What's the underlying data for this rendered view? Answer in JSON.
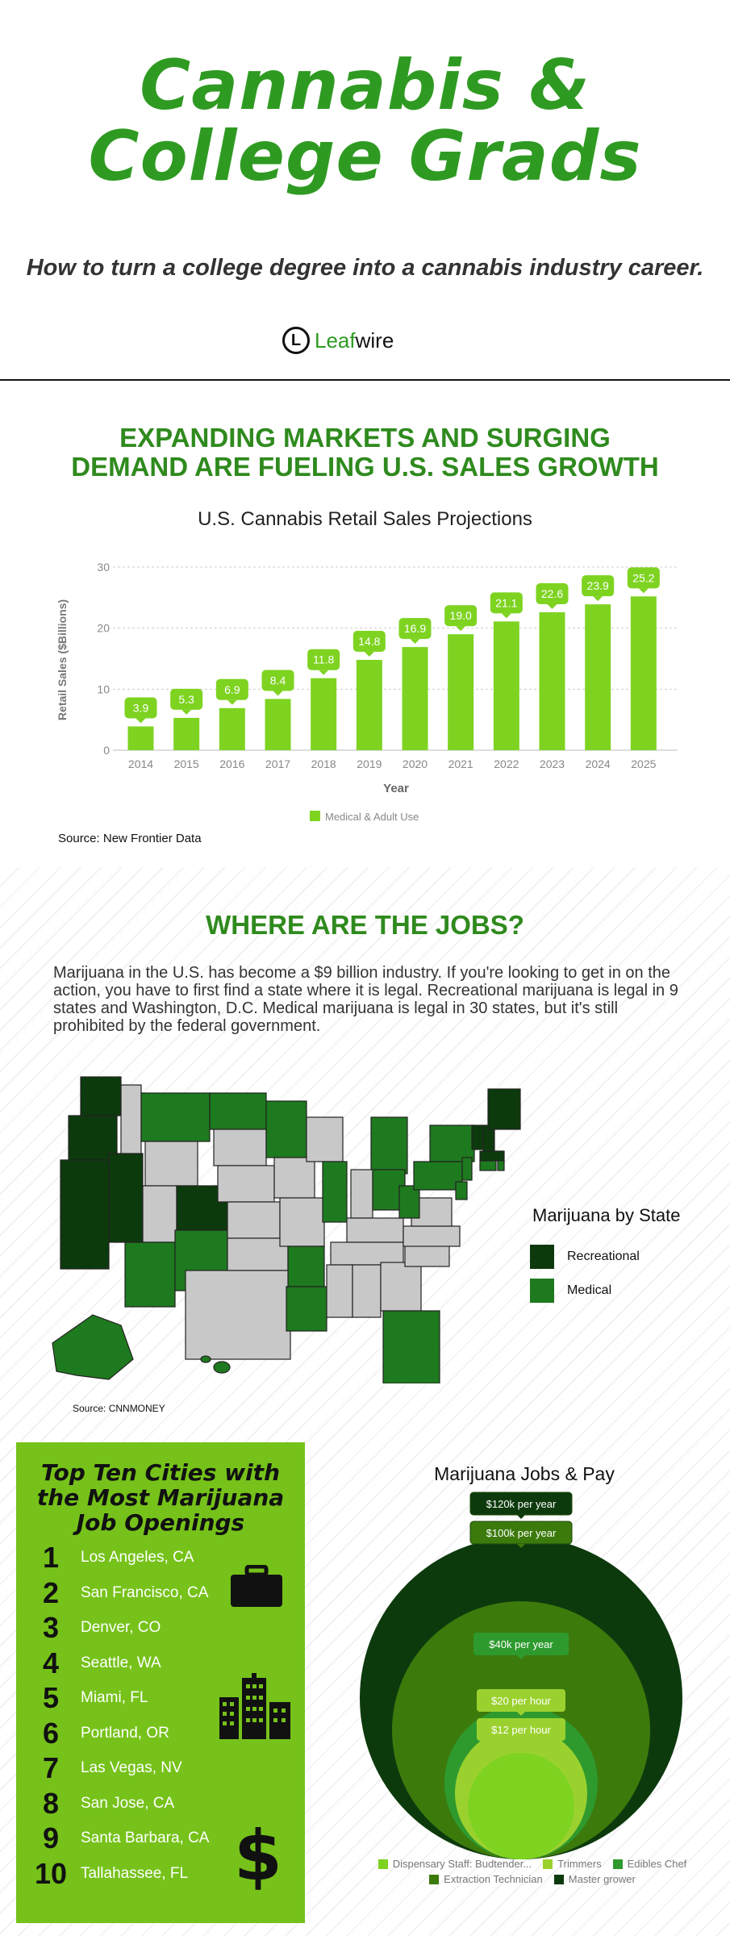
{
  "header": {
    "title_line1": "Cannabis &",
    "title_line2": "College Grads",
    "subtitle": "How to turn a college degree into a cannabis industry career.",
    "logo_mark": "L",
    "logo_leaf": "Leaf",
    "logo_wire": "wire"
  },
  "sales_section": {
    "heading_line1": "EXPANDING MARKETS AND SURGING",
    "heading_line2": "DEMAND ARE FUELING U.S. SALES GROWTH",
    "source": "Source: New Frontier Data"
  },
  "chart_data": [
    {
      "type": "bar",
      "title": "U.S. Cannabis Retail Sales Projections",
      "xlabel": "Year",
      "ylabel": "Retail Sales ($Billions)",
      "ylim": [
        0,
        30
      ],
      "yticks": [
        0,
        10,
        20,
        30
      ],
      "categories": [
        "2014",
        "2015",
        "2016",
        "2017",
        "2018",
        "2019",
        "2020",
        "2021",
        "2022",
        "2023",
        "2024",
        "2025"
      ],
      "series": [
        {
          "name": "Medical & Adult Use",
          "values": [
            3.9,
            5.3,
            6.9,
            8.4,
            11.8,
            14.8,
            16.9,
            19.0,
            21.1,
            22.6,
            23.9,
            25.2
          ],
          "color": "#7ed321"
        }
      ],
      "value_labels": [
        "3.9",
        "5.3",
        "6.9",
        "8.4",
        "11.8",
        "14.8",
        "16.9",
        "19.0",
        "21.1",
        "22.6",
        "23.9",
        "25.2"
      ],
      "grid": true,
      "legend": "bottom"
    },
    {
      "type": "pie",
      "title": "Marijuana Jobs & Pay",
      "style": "nested-circles",
      "categories": [
        "Dispensary Staff: Budtender...",
        "Trimmers",
        "Edibles Chef",
        "Extraction Technician",
        "Master grower"
      ],
      "values": [
        12,
        20,
        40000,
        100000,
        120000
      ],
      "value_labels": [
        "$12 per hour",
        "$20 per hour",
        "$40k per year",
        "$100k per year",
        "$120k per year"
      ],
      "colors": [
        "#7ed321",
        "#9bd12f",
        "#2e9a2e",
        "#3c7a0c",
        "#0d3a0d"
      ],
      "legend": "bottom"
    }
  ],
  "jobs_section": {
    "heading": "WHERE ARE THE JOBS?",
    "paragraph": "Marijuana in the U.S. has become a $9 billion industry. If you're looking to get in on the action, you have to first find a state where it is legal. Recreational marijuana is legal in 9 states and Washington, D.C.  Medical marijuana is legal in 30 states, but it's still prohibited by the federal government.",
    "map_legend_title": "Marijuana by State",
    "legend_recreational": "Recreational",
    "legend_medical": "Medical",
    "color_recreational": "#0d3a0d",
    "color_medical": "#1e7a1e",
    "color_none": "#c8c8c8",
    "source": "Source: CNNMONEY"
  },
  "cities": {
    "title_line1": "Top Ten Cities with",
    "title_line2": "the Most Marijuana",
    "title_line3": "Job Openings",
    "items": [
      {
        "rank": "1",
        "name": "Los Angeles, CA"
      },
      {
        "rank": "2",
        "name": "San Francisco, CA"
      },
      {
        "rank": "3",
        "name": "Denver, CO"
      },
      {
        "rank": "4",
        "name": "Seattle, WA"
      },
      {
        "rank": "5",
        "name": "Miami, FL"
      },
      {
        "rank": "6",
        "name": "Portland, OR"
      },
      {
        "rank": "7",
        "name": "Las Vegas, NV"
      },
      {
        "rank": "8",
        "name": "San Jose, CA"
      },
      {
        "rank": "9",
        "name": "Santa Barbara, CA"
      },
      {
        "rank": "10",
        "name": "Tallahassee, FL"
      }
    ],
    "dollar_icon": "$",
    "icons": [
      "briefcase-icon",
      "buildings-icon",
      "dollar-sign-icon"
    ]
  },
  "colors": {
    "brand_green": "#2f9a22",
    "bar_green": "#7ed321",
    "panel_green": "#76c21a"
  }
}
